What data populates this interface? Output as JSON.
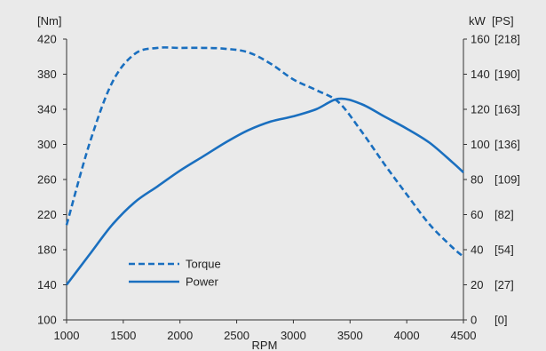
{
  "chart_data": {
    "type": "line",
    "title": "",
    "xlabel": "RPM",
    "x_ticks": [
      1000,
      1500,
      2000,
      2500,
      3000,
      3500,
      4000,
      4500
    ],
    "xlim": [
      1000,
      4500
    ],
    "left_axis": {
      "unit_label": "[Nm]",
      "ylim": [
        100,
        420
      ],
      "ticks": [
        100,
        140,
        180,
        220,
        260,
        300,
        340,
        380,
        420
      ]
    },
    "right_axis": {
      "unit_label_primary": "kW",
      "unit_label_secondary": "[PS]",
      "ylim": [
        0,
        160
      ],
      "ticks": [
        {
          "kw": "0",
          "ps": "[0]"
        },
        {
          "kw": "20",
          "ps": "[27]"
        },
        {
          "kw": "40",
          "ps": "[54]"
        },
        {
          "kw": "60",
          "ps": "[82]"
        },
        {
          "kw": "80",
          "ps": "[109]"
        },
        {
          "kw": "100",
          "ps": "[136]"
        },
        {
          "kw": "120",
          "ps": "[163]"
        },
        {
          "kw": "140",
          "ps": "[190]"
        },
        {
          "kw": "160",
          "ps": "[218]"
        }
      ]
    },
    "series": [
      {
        "name": "Torque",
        "axis": "left",
        "style": "dashed",
        "color": "#1a6fbf",
        "points": [
          [
            1000,
            208
          ],
          [
            1200,
            300
          ],
          [
            1400,
            370
          ],
          [
            1600,
            403
          ],
          [
            1800,
            410
          ],
          [
            2000,
            410
          ],
          [
            2200,
            410
          ],
          [
            2400,
            409
          ],
          [
            2600,
            405
          ],
          [
            2800,
            392
          ],
          [
            3000,
            374
          ],
          [
            3200,
            362
          ],
          [
            3400,
            348
          ],
          [
            3600,
            315
          ],
          [
            3800,
            278
          ],
          [
            4000,
            243
          ],
          [
            4200,
            209
          ],
          [
            4400,
            183
          ],
          [
            4500,
            172
          ]
        ]
      },
      {
        "name": "Power",
        "axis": "right",
        "style": "solid",
        "color": "#1a6fbf",
        "points": [
          [
            1000,
            20
          ],
          [
            1200,
            37
          ],
          [
            1400,
            54
          ],
          [
            1600,
            67
          ],
          [
            1800,
            76
          ],
          [
            2000,
            85
          ],
          [
            2200,
            93
          ],
          [
            2400,
            101
          ],
          [
            2600,
            108
          ],
          [
            2800,
            113
          ],
          [
            3000,
            116
          ],
          [
            3200,
            120
          ],
          [
            3400,
            126
          ],
          [
            3600,
            123
          ],
          [
            3800,
            116
          ],
          [
            4000,
            109
          ],
          [
            4200,
            101
          ],
          [
            4400,
            90
          ],
          [
            4500,
            84
          ]
        ]
      }
    ],
    "legend_position": "lower-left",
    "grid": false
  }
}
